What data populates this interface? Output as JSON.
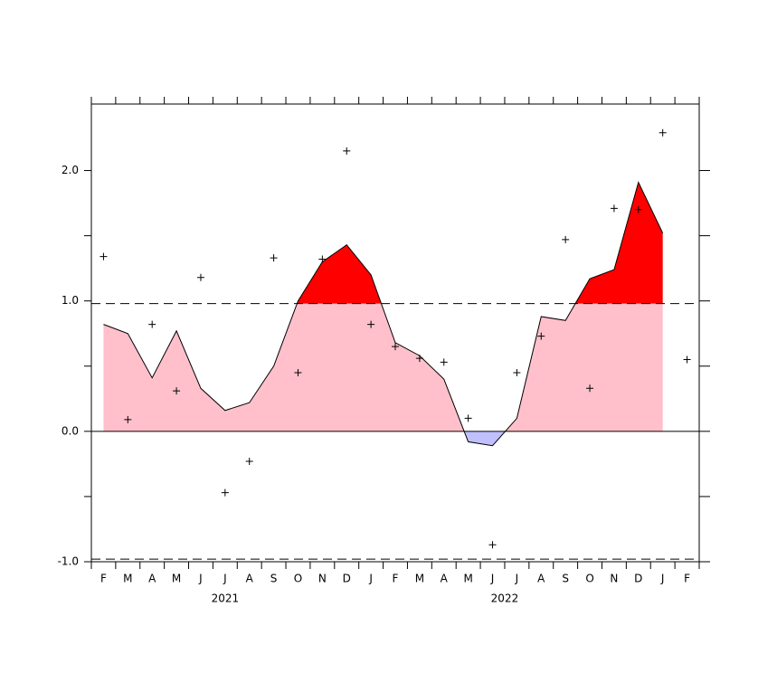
{
  "chart_data": {
    "type": "index-area",
    "categories": [
      "F",
      "M",
      "A",
      "M",
      "J",
      "J",
      "A",
      "S",
      "O",
      "N",
      "D",
      "J",
      "F",
      "M",
      "A",
      "M",
      "J",
      "J",
      "A",
      "S",
      "O",
      "N",
      "D",
      "J",
      "F"
    ],
    "groups": [
      {
        "label": "2021",
        "count": 11
      },
      {
        "label": "2022",
        "count": 12
      }
    ],
    "series": [
      {
        "name": "smoothed",
        "kind": "line",
        "color": "#000000",
        "values": [
          0.82,
          0.75,
          0.41,
          0.77,
          0.33,
          0.16,
          0.22,
          0.5,
          1.0,
          1.3,
          1.43,
          1.2,
          0.68,
          0.58,
          0.4,
          -0.08,
          -0.11,
          0.1,
          0.88,
          0.85,
          1.17,
          1.24,
          1.91,
          1.52,
          null
        ]
      },
      {
        "name": "monthly",
        "kind": "cross",
        "color": "#000000",
        "values": [
          1.34,
          0.09,
          0.82,
          0.31,
          1.18,
          -0.47,
          -0.23,
          1.33,
          0.45,
          1.32,
          2.15,
          0.82,
          0.65,
          0.56,
          0.53,
          0.1,
          -0.87,
          0.45,
          0.73,
          1.47,
          0.33,
          1.71,
          1.7,
          2.29,
          0.55
        ]
      }
    ],
    "thresholds": [
      0.98,
      -0.98
    ],
    "fill_colors": {
      "above": "#ff0000",
      "positive": "#ffc0cb",
      "negative": "#c0c0ff"
    },
    "ylim": [
      -1.0,
      2.51
    ],
    "yticks": [
      {
        "value": 2,
        "label": "2.0"
      },
      {
        "value": 1,
        "label": "1.0"
      },
      {
        "value": 0,
        "label": "0.0"
      },
      {
        "value": -1,
        "label": "-1.0"
      }
    ],
    "yminorticks": [
      1.5,
      0.5,
      -0.5
    ]
  }
}
